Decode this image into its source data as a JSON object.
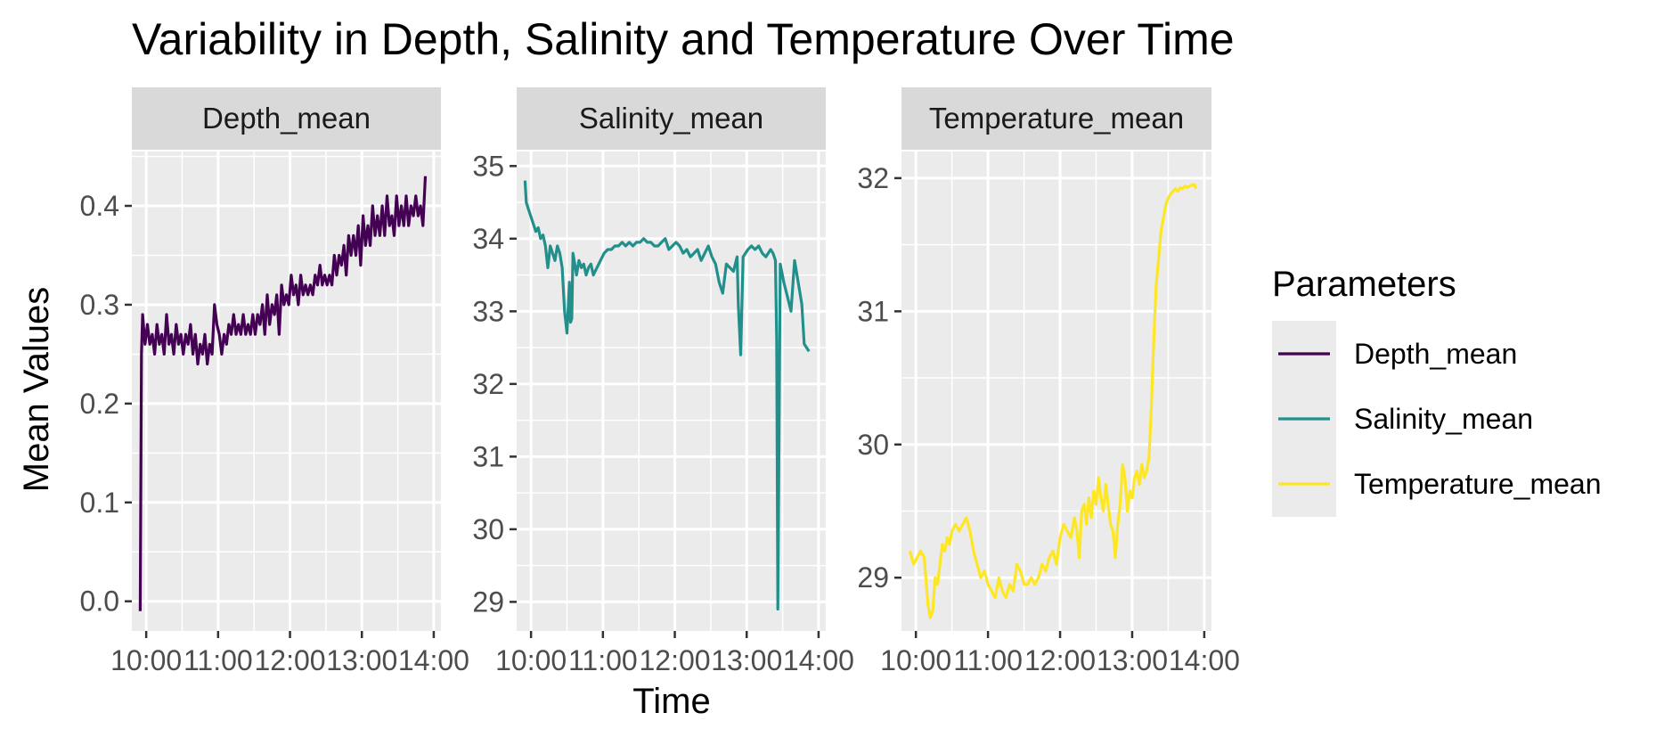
{
  "chart_data": {
    "type": "line",
    "title": "Variability in Depth, Salinity and Temperature Over Time",
    "xlabel": "Time",
    "ylabel": "Mean Values",
    "legend": {
      "title": "Parameters",
      "placement": "right",
      "entries": [
        "Depth_mean",
        "Salinity_mean",
        "Temperature_mean"
      ]
    },
    "grid": true,
    "x_ticks": [
      "10:00",
      "11:00",
      "12:00",
      "13:00",
      "14:00"
    ],
    "xlim": [
      "09:48",
      "14:06"
    ],
    "panels": [
      {
        "strip": "Depth_mean",
        "color": "#440154",
        "ylim": [
          -0.03,
          0.455
        ],
        "y_ticks": [
          "0.0",
          "0.1",
          "0.2",
          "0.3",
          "0.4"
        ],
        "series": {
          "name": "Depth_mean",
          "x": [
            "09:55",
            "09:56",
            "09:57",
            "09:59",
            "10:01",
            "10:03",
            "10:05",
            "10:07",
            "10:09",
            "10:11",
            "10:13",
            "10:15",
            "10:17",
            "10:19",
            "10:21",
            "10:23",
            "10:25",
            "10:27",
            "10:29",
            "10:31",
            "10:33",
            "10:35",
            "10:37",
            "10:39",
            "10:41",
            "10:43",
            "10:45",
            "10:47",
            "10:49",
            "10:51",
            "10:53",
            "10:55",
            "10:57",
            "10:59",
            "11:01",
            "11:03",
            "11:05",
            "11:07",
            "11:09",
            "11:11",
            "11:13",
            "11:15",
            "11:17",
            "11:19",
            "11:21",
            "11:23",
            "11:25",
            "11:27",
            "11:29",
            "11:31",
            "11:33",
            "11:35",
            "11:37",
            "11:39",
            "11:41",
            "11:43",
            "11:45",
            "11:47",
            "11:49",
            "11:51",
            "11:53",
            "11:55",
            "11:57",
            "11:59",
            "12:01",
            "12:03",
            "12:05",
            "12:07",
            "12:09",
            "12:11",
            "12:13",
            "12:15",
            "12:17",
            "12:19",
            "12:21",
            "12:23",
            "12:25",
            "12:27",
            "12:29",
            "12:31",
            "12:33",
            "12:35",
            "12:37",
            "12:39",
            "12:41",
            "12:43",
            "12:45",
            "12:47",
            "12:49",
            "12:51",
            "12:53",
            "12:55",
            "12:57",
            "12:59",
            "13:01",
            "13:03",
            "13:05",
            "13:07",
            "13:09",
            "13:11",
            "13:13",
            "13:15",
            "13:17",
            "13:19",
            "13:21",
            "13:23",
            "13:25",
            "13:27",
            "13:29",
            "13:31",
            "13:33",
            "13:35",
            "13:37",
            "13:39",
            "13:41",
            "13:43",
            "13:45",
            "13:47",
            "13:49",
            "13:51",
            "13:53"
          ],
          "values": [
            -0.01,
            0.25,
            0.29,
            0.26,
            0.28,
            0.26,
            0.27,
            0.25,
            0.28,
            0.26,
            0.27,
            0.25,
            0.29,
            0.26,
            0.27,
            0.25,
            0.28,
            0.26,
            0.27,
            0.25,
            0.27,
            0.26,
            0.28,
            0.25,
            0.27,
            0.24,
            0.26,
            0.25,
            0.27,
            0.24,
            0.26,
            0.25,
            0.3,
            0.28,
            0.27,
            0.25,
            0.27,
            0.26,
            0.28,
            0.27,
            0.29,
            0.27,
            0.28,
            0.27,
            0.29,
            0.27,
            0.28,
            0.27,
            0.29,
            0.27,
            0.29,
            0.28,
            0.3,
            0.27,
            0.31,
            0.28,
            0.3,
            0.29,
            0.31,
            0.27,
            0.32,
            0.3,
            0.31,
            0.3,
            0.33,
            0.31,
            0.32,
            0.3,
            0.33,
            0.31,
            0.32,
            0.31,
            0.32,
            0.31,
            0.33,
            0.32,
            0.34,
            0.32,
            0.33,
            0.32,
            0.33,
            0.32,
            0.35,
            0.33,
            0.35,
            0.34,
            0.36,
            0.33,
            0.37,
            0.35,
            0.37,
            0.35,
            0.38,
            0.34,
            0.39,
            0.36,
            0.38,
            0.36,
            0.4,
            0.37,
            0.39,
            0.37,
            0.4,
            0.37,
            0.41,
            0.38,
            0.39,
            0.37,
            0.41,
            0.38,
            0.4,
            0.38,
            0.41,
            0.38,
            0.4,
            0.39,
            0.41,
            0.39,
            0.4,
            0.38,
            0.43
          ]
        }
      },
      {
        "strip": "Salinity_mean",
        "color": "#21908C",
        "ylim": [
          28.6,
          35.2
        ],
        "y_ticks": [
          "29",
          "30",
          "31",
          "32",
          "33",
          "34",
          "35"
        ],
        "series": {
          "name": "Salinity_mean",
          "x": [
            "09:55",
            "09:56",
            "09:58",
            "10:00",
            "10:02",
            "10:04",
            "10:06",
            "10:08",
            "10:10",
            "10:12",
            "10:14",
            "10:16",
            "10:18",
            "10:20",
            "10:22",
            "10:24",
            "10:26",
            "10:28",
            "10:30",
            "10:32",
            "10:33",
            "10:34",
            "10:35",
            "10:36",
            "10:37",
            "10:38",
            "10:40",
            "10:42",
            "10:44",
            "10:46",
            "10:48",
            "10:50",
            "10:52",
            "10:55",
            "10:58",
            "11:01",
            "11:04",
            "11:07",
            "11:10",
            "11:13",
            "11:16",
            "11:19",
            "11:22",
            "11:25",
            "11:28",
            "11:31",
            "11:34",
            "11:37",
            "11:40",
            "11:43",
            "11:46",
            "11:49",
            "11:52",
            "11:55",
            "11:58",
            "12:01",
            "12:04",
            "12:07",
            "12:10",
            "12:13",
            "12:16",
            "12:19",
            "12:22",
            "12:25",
            "12:28",
            "12:31",
            "12:34",
            "12:37",
            "12:40",
            "12:43",
            "12:46",
            "12:49",
            "12:52",
            "12:53",
            "12:55",
            "12:57",
            "12:59",
            "13:01",
            "13:04",
            "13:07",
            "13:10",
            "13:13",
            "13:16",
            "13:18",
            "13:20",
            "13:22",
            "13:24",
            "13:25",
            "13:26",
            "13:28",
            "13:31",
            "13:34",
            "13:37",
            "13:40",
            "13:42",
            "13:44",
            "13:46",
            "13:48",
            "13:50",
            "13:52"
          ],
          "values": [
            34.8,
            34.5,
            34.4,
            34.3,
            34.2,
            34.1,
            34.15,
            34.0,
            34.05,
            33.9,
            33.6,
            33.9,
            33.8,
            33.7,
            33.9,
            33.8,
            33.6,
            33.0,
            32.7,
            33.4,
            32.85,
            32.9,
            33.8,
            33.7,
            33.6,
            33.5,
            33.7,
            33.6,
            33.65,
            33.5,
            33.6,
            33.65,
            33.5,
            33.6,
            33.7,
            33.8,
            33.85,
            33.85,
            33.9,
            33.9,
            33.95,
            33.9,
            33.95,
            33.9,
            33.95,
            33.95,
            34.0,
            33.95,
            33.95,
            33.9,
            33.9,
            33.95,
            34.0,
            33.85,
            33.9,
            33.95,
            33.9,
            33.8,
            33.85,
            33.75,
            33.8,
            33.85,
            33.7,
            33.8,
            33.9,
            33.75,
            33.65,
            33.4,
            33.25,
            33.65,
            33.6,
            33.55,
            33.75,
            33.1,
            32.4,
            33.75,
            33.8,
            33.85,
            33.9,
            33.85,
            33.9,
            33.8,
            33.75,
            33.8,
            33.85,
            33.8,
            33.7,
            32.6,
            28.9,
            33.65,
            33.4,
            33.2,
            33.0,
            33.7,
            33.5,
            33.3,
            33.1,
            32.55,
            32.5,
            32.45
          ]
        }
      },
      {
        "strip": "Temperature_mean",
        "color": "#FDE725",
        "ylim": [
          28.6,
          32.2
        ],
        "y_ticks": [
          "29",
          "30",
          "31",
          "32"
        ],
        "series": {
          "name": "Temperature_mean",
          "x": [
            "09:55",
            "09:58",
            "10:01",
            "10:04",
            "10:07",
            "10:10",
            "10:12",
            "10:14",
            "10:16",
            "10:18",
            "10:20",
            "10:22",
            "10:24",
            "10:26",
            "10:28",
            "10:30",
            "10:33",
            "10:36",
            "10:39",
            "10:42",
            "10:45",
            "10:48",
            "10:51",
            "10:54",
            "10:57",
            "11:00",
            "11:03",
            "11:06",
            "11:09",
            "11:12",
            "11:15",
            "11:18",
            "11:21",
            "11:24",
            "11:27",
            "11:30",
            "11:33",
            "11:36",
            "11:39",
            "11:42",
            "11:45",
            "11:48",
            "11:51",
            "11:54",
            "11:57",
            "12:00",
            "12:03",
            "12:06",
            "12:09",
            "12:12",
            "12:14",
            "12:16",
            "12:18",
            "12:20",
            "12:22",
            "12:24",
            "12:26",
            "12:28",
            "12:30",
            "12:32",
            "12:34",
            "12:36",
            "12:38",
            "12:40",
            "12:42",
            "12:44",
            "12:46",
            "12:48",
            "12:50",
            "12:52",
            "12:54",
            "12:56",
            "12:58",
            "13:00",
            "13:02",
            "13:04",
            "13:06",
            "13:08",
            "13:10",
            "13:12",
            "13:14",
            "13:16",
            "13:18",
            "13:20",
            "13:22",
            "13:24",
            "13:26",
            "13:28",
            "13:30",
            "13:32",
            "13:34",
            "13:36",
            "13:38",
            "13:40",
            "13:42",
            "13:44",
            "13:46",
            "13:48",
            "13:50",
            "13:52",
            "13:53"
          ],
          "values": [
            29.2,
            29.1,
            29.15,
            29.2,
            29.15,
            28.8,
            28.7,
            28.75,
            29.0,
            28.95,
            29.1,
            29.25,
            29.2,
            29.3,
            29.25,
            29.35,
            29.4,
            29.35,
            29.4,
            29.45,
            29.35,
            29.2,
            29.1,
            29.0,
            29.05,
            28.95,
            28.9,
            28.85,
            29.0,
            28.9,
            28.85,
            28.95,
            28.9,
            29.1,
            29.05,
            28.95,
            28.95,
            29.0,
            28.95,
            29.0,
            29.1,
            29.05,
            29.15,
            29.2,
            29.1,
            29.3,
            29.4,
            29.35,
            29.3,
            29.45,
            29.35,
            29.15,
            29.5,
            29.55,
            29.4,
            29.6,
            29.45,
            29.65,
            29.55,
            29.75,
            29.6,
            29.5,
            29.7,
            29.55,
            29.4,
            29.35,
            29.15,
            29.4,
            29.55,
            29.85,
            29.75,
            29.5,
            29.65,
            29.6,
            29.75,
            29.8,
            29.7,
            29.85,
            29.75,
            29.8,
            29.9,
            30.3,
            30.8,
            31.2,
            31.4,
            31.6,
            31.7,
            31.8,
            31.85,
            31.88,
            31.9,
            31.92,
            31.9,
            31.93,
            31.92,
            31.94,
            31.93,
            31.94,
            31.95,
            31.95,
            31.92
          ]
        }
      }
    ]
  }
}
